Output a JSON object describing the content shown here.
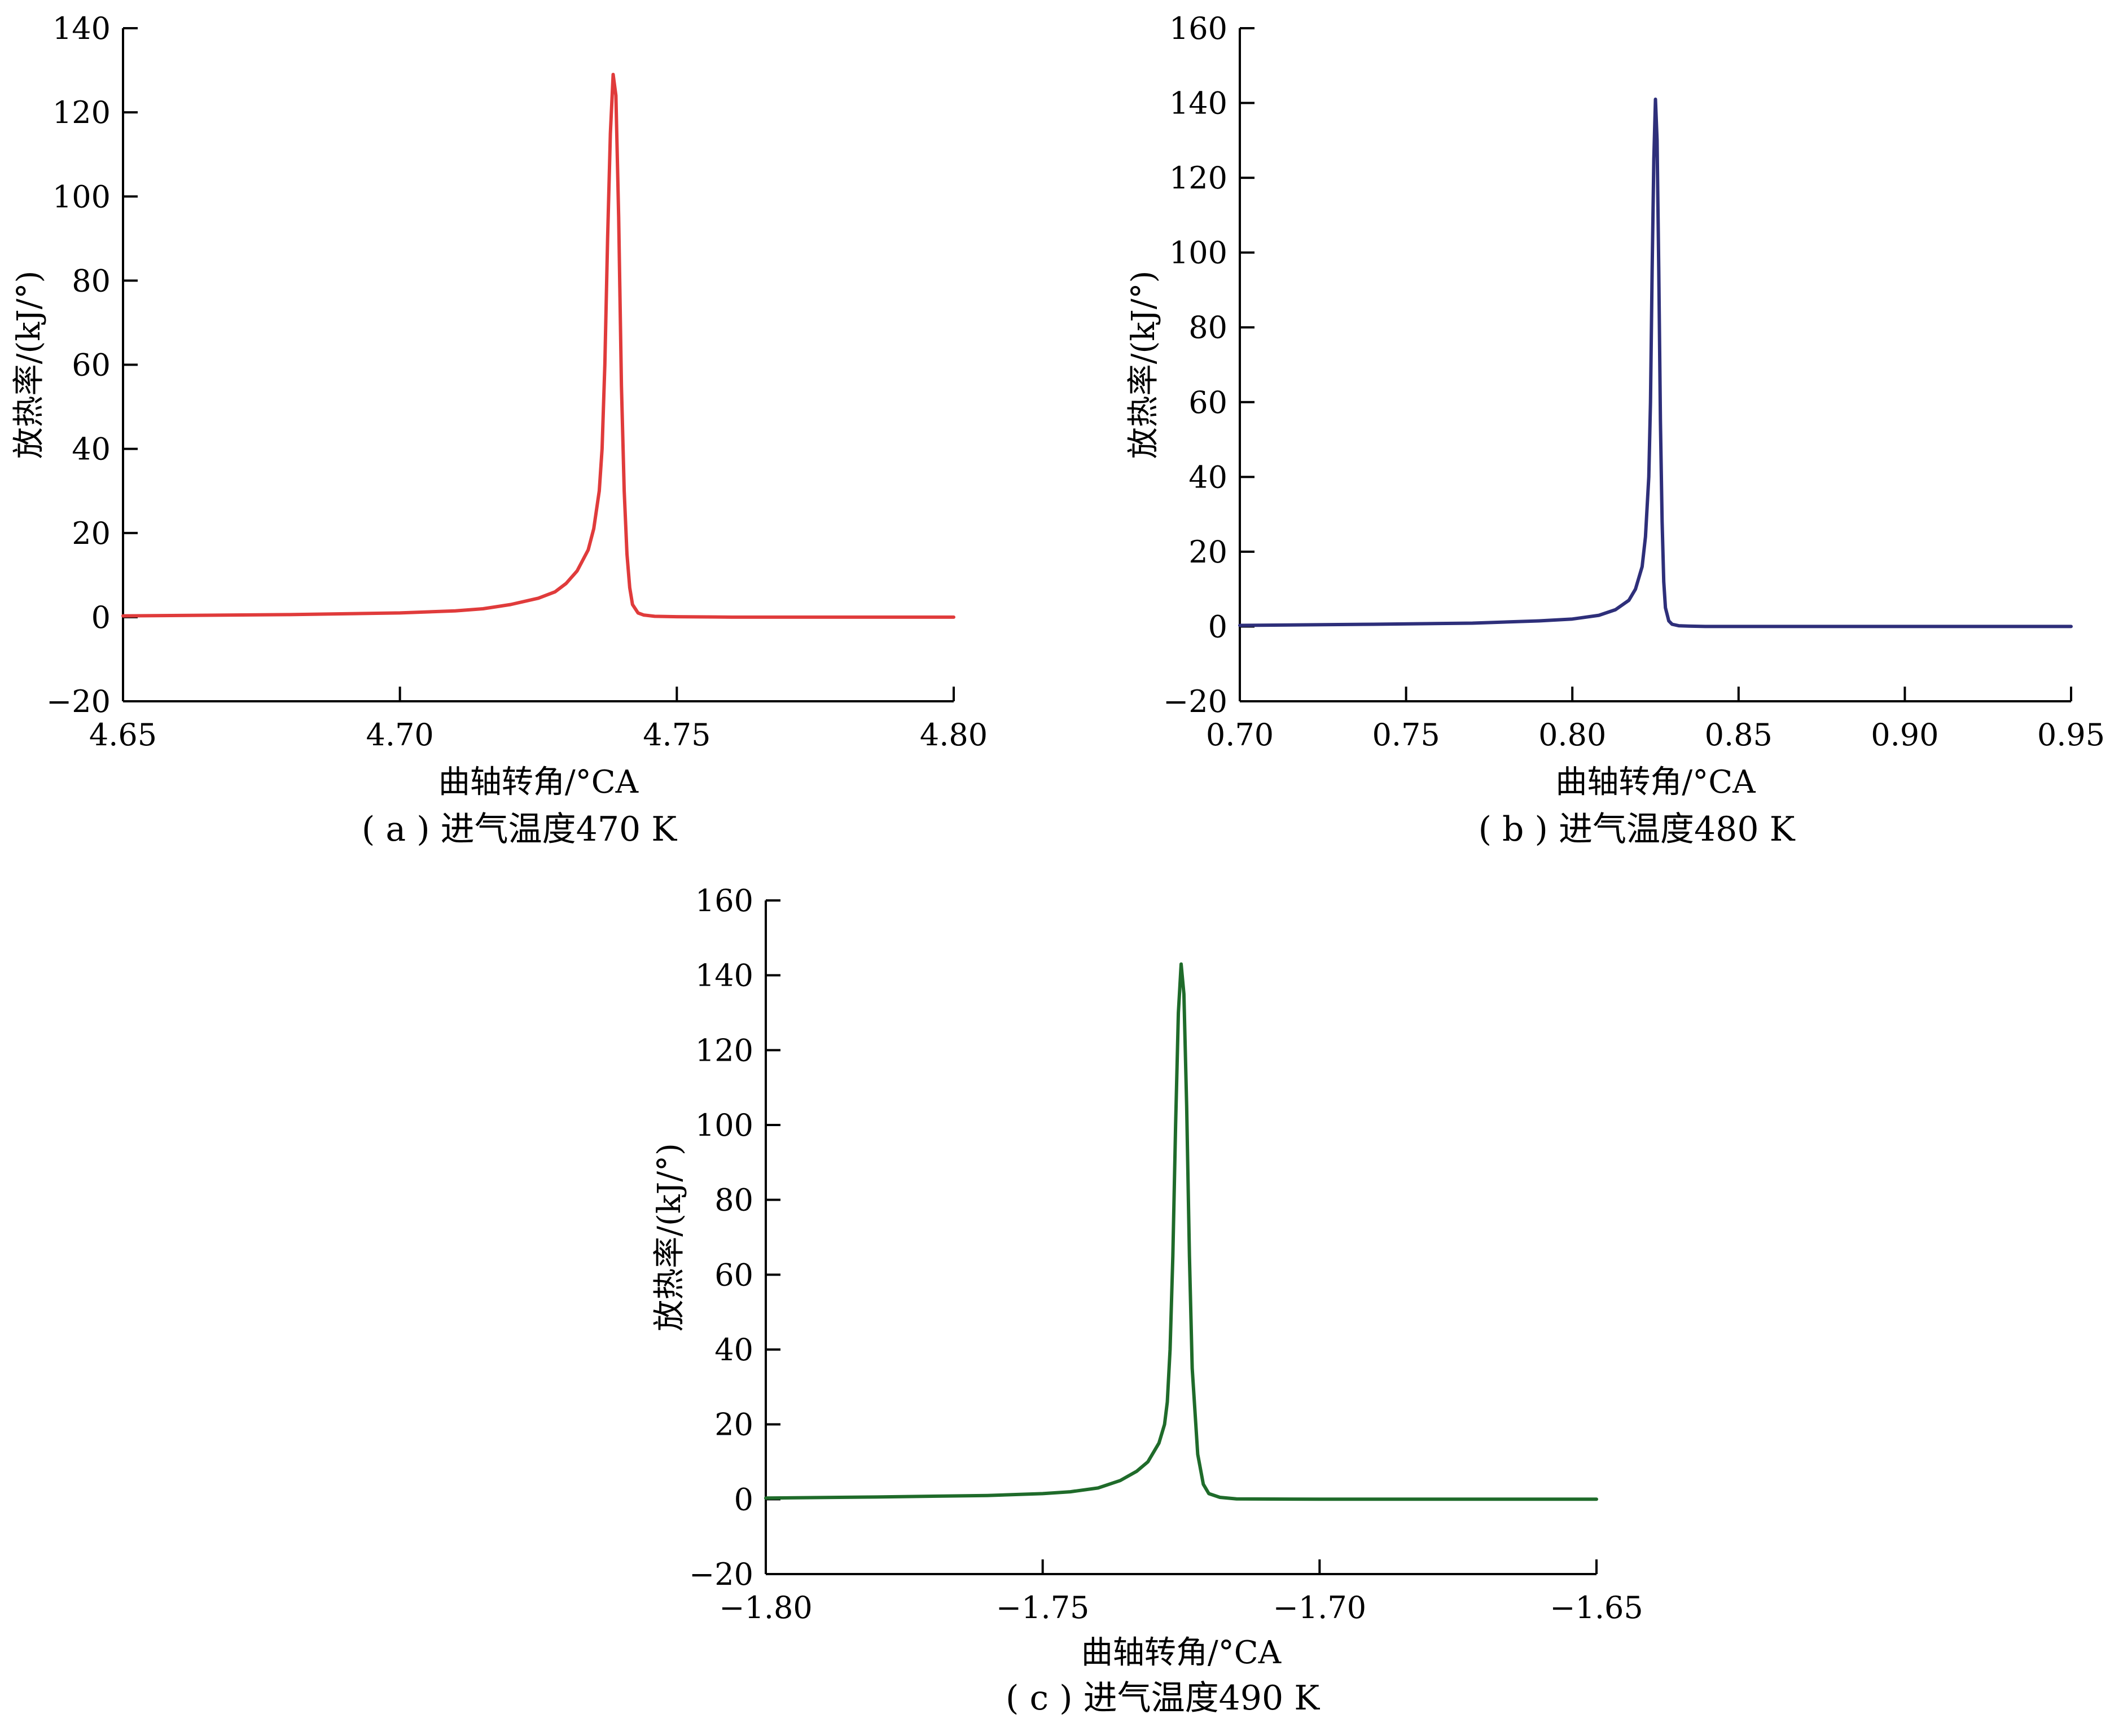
{
  "chart_data": [
    {
      "type": "line",
      "caption": "( a ) 进气温度470 K",
      "xlabel": "曲轴转角/°CA",
      "ylabel": "放热率/(kJ/°)",
      "xlim": [
        4.65,
        4.8
      ],
      "ylim": [
        -20,
        140
      ],
      "xticks": [
        4.65,
        4.7,
        4.75,
        4.8
      ],
      "xtick_labels": [
        "4.65",
        "4.70",
        "4.75",
        "4.80"
      ],
      "yticks": [
        -20,
        0,
        20,
        40,
        60,
        80,
        100,
        120,
        140
      ],
      "ytick_labels": [
        "−20",
        "0",
        "20",
        "40",
        "60",
        "80",
        "100",
        "120",
        "140"
      ],
      "color": "#e03b3b",
      "series": [
        {
          "x": [
            4.65,
            4.68,
            4.7,
            4.71,
            4.715,
            4.72,
            4.725,
            4.728,
            4.73,
            4.732,
            4.734,
            4.735,
            4.736,
            4.7365,
            4.737,
            4.7375,
            4.738,
            4.7385,
            4.739,
            4.7395,
            4.74,
            4.7405,
            4.741,
            4.7415,
            4.742,
            4.743,
            4.744,
            4.746,
            4.75,
            4.76,
            4.78,
            4.8
          ],
          "y": [
            0.3,
            0.6,
            1.0,
            1.5,
            2.0,
            3.0,
            4.5,
            6.0,
            8.0,
            11.0,
            16.0,
            21.0,
            30.0,
            40.0,
            60.0,
            90.0,
            115.0,
            129.0,
            124.0,
            95.0,
            55.0,
            30.0,
            15.0,
            7.0,
            3.0,
            1.0,
            0.5,
            0.2,
            0.1,
            0.0,
            0.0,
            0.0
          ]
        }
      ]
    },
    {
      "type": "line",
      "caption": "( b ) 进气温度480 K",
      "xlabel": "曲轴转角/°CA",
      "ylabel": "放热率/(kJ/°)",
      "xlim": [
        0.7,
        0.95
      ],
      "ylim": [
        -20,
        160
      ],
      "xticks": [
        0.7,
        0.75,
        0.8,
        0.85,
        0.9,
        0.95
      ],
      "xtick_labels": [
        "0.70",
        "0.75",
        "0.80",
        "0.85",
        "0.90",
        "0.95"
      ],
      "yticks": [
        -20,
        0,
        20,
        40,
        60,
        80,
        100,
        120,
        140,
        160
      ],
      "ytick_labels": [
        "−20",
        "0",
        "20",
        "40",
        "60",
        "80",
        "100",
        "120",
        "140",
        "160"
      ],
      "color": "#2e2f7a",
      "series": [
        {
          "x": [
            0.7,
            0.74,
            0.77,
            0.79,
            0.8,
            0.808,
            0.813,
            0.817,
            0.819,
            0.821,
            0.822,
            0.823,
            0.8235,
            0.824,
            0.8245,
            0.825,
            0.8255,
            0.826,
            0.8265,
            0.827,
            0.8275,
            0.828,
            0.829,
            0.83,
            0.832,
            0.835,
            0.84,
            0.85,
            0.9,
            0.95
          ],
          "y": [
            0.3,
            0.6,
            0.9,
            1.5,
            2.0,
            3.0,
            4.5,
            7.0,
            10.0,
            16.0,
            24.0,
            40.0,
            60.0,
            95.0,
            125.0,
            141.0,
            130.0,
            95.0,
            55.0,
            28.0,
            12.0,
            5.0,
            1.5,
            0.6,
            0.2,
            0.1,
            0.0,
            0.0,
            0.0,
            0.0
          ]
        }
      ]
    },
    {
      "type": "line",
      "caption": "( c ) 进气温度490 K",
      "xlabel": "曲轴转角/°CA",
      "ylabel": "放热率/(kJ/°)",
      "xlim": [
        -1.8,
        -1.65
      ],
      "ylim": [
        -20,
        160
      ],
      "xticks": [
        -1.8,
        -1.75,
        -1.7,
        -1.65
      ],
      "xtick_labels": [
        "−1.80",
        "−1.75",
        "−1.70",
        "−1.65"
      ],
      "yticks": [
        -20,
        0,
        20,
        40,
        60,
        80,
        100,
        120,
        140,
        160
      ],
      "ytick_labels": [
        "−20",
        "0",
        "20",
        "40",
        "60",
        "80",
        "100",
        "120",
        "140",
        "160"
      ],
      "color": "#1f6b2a",
      "series": [
        {
          "x": [
            -1.8,
            -1.78,
            -1.76,
            -1.75,
            -1.745,
            -1.74,
            -1.736,
            -1.733,
            -1.731,
            -1.729,
            -1.728,
            -1.7275,
            -1.727,
            -1.7265,
            -1.726,
            -1.7255,
            -1.725,
            -1.7245,
            -1.724,
            -1.7235,
            -1.723,
            -1.722,
            -1.721,
            -1.72,
            -1.718,
            -1.715,
            -1.7,
            -1.68,
            -1.65
          ],
          "y": [
            0.3,
            0.6,
            1.0,
            1.5,
            2.0,
            3.0,
            5.0,
            7.5,
            10.0,
            15.0,
            20.0,
            26.0,
            40.0,
            65.0,
            100.0,
            130.0,
            143.0,
            135.0,
            105.0,
            65.0,
            35.0,
            12.0,
            4.0,
            1.5,
            0.5,
            0.1,
            0.0,
            0.0,
            0.0
          ]
        }
      ]
    }
  ]
}
